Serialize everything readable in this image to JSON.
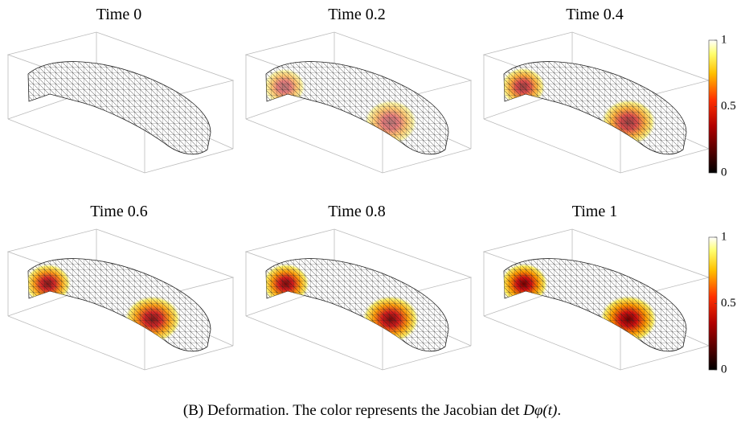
{
  "panels": [
    {
      "title": "Time 0"
    },
    {
      "title": "Time 0.2"
    },
    {
      "title": "Time 0.4"
    },
    {
      "title": "Time 0.6"
    },
    {
      "title": "Time 0.8"
    },
    {
      "title": "Time 1"
    }
  ],
  "colorbars": [
    {
      "ticks": [
        0,
        0.5,
        1
      ]
    },
    {
      "ticks": [
        0,
        0.5,
        1
      ]
    }
  ],
  "caption": {
    "label": "(B)",
    "text": "Deformation. The color represents the Jacobian det",
    "math": "Dφ(t)",
    "end": "."
  }
}
